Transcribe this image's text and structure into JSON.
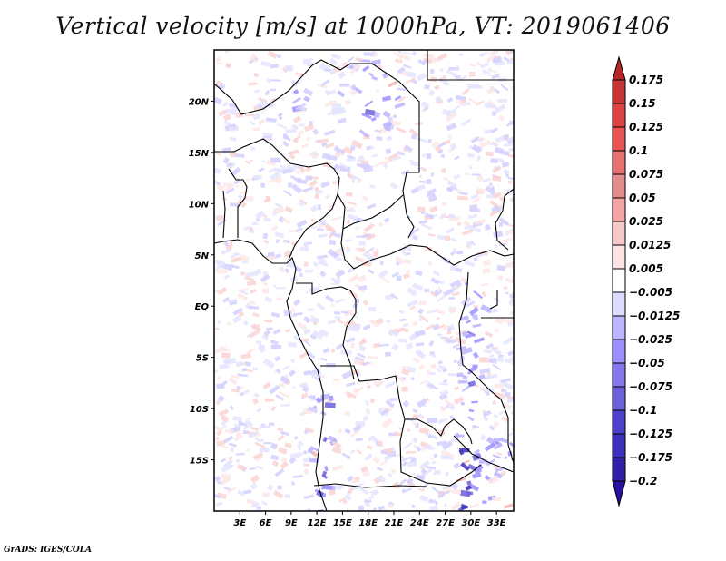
{
  "title": "Vertical velocity [m/s] at 1000hPa, VT: 2019061406",
  "credit": "GrADS: IGES/COLA",
  "map": {
    "variable": "Vertical velocity",
    "units": "m/s",
    "level": "1000hPa",
    "valid_time": "2019061406",
    "lon_range": [
      0,
      35
    ],
    "lat_range": [
      -20,
      25
    ],
    "x_ticks": [
      {
        "value": 3,
        "label": "3E"
      },
      {
        "value": 6,
        "label": "6E"
      },
      {
        "value": 9,
        "label": "9E"
      },
      {
        "value": 12,
        "label": "12E"
      },
      {
        "value": 15,
        "label": "15E"
      },
      {
        "value": 18,
        "label": "18E"
      },
      {
        "value": 21,
        "label": "21E"
      },
      {
        "value": 24,
        "label": "24E"
      },
      {
        "value": 27,
        "label": "27E"
      },
      {
        "value": 30,
        "label": "30E"
      },
      {
        "value": 33,
        "label": "33E"
      }
    ],
    "y_ticks": [
      {
        "value": 20,
        "label": "20N"
      },
      {
        "value": 15,
        "label": "15N"
      },
      {
        "value": 10,
        "label": "10N"
      },
      {
        "value": 5,
        "label": "5N"
      },
      {
        "value": 0,
        "label": "EQ"
      },
      {
        "value": -5,
        "label": "5S"
      },
      {
        "value": -10,
        "label": "10S"
      },
      {
        "value": -15,
        "label": "15S"
      }
    ]
  },
  "colorbar": {
    "labels": [
      "0.175",
      "0.15",
      "0.125",
      "0.1",
      "0.075",
      "0.05",
      "0.025",
      "0.0125",
      "0.005",
      "-0.005",
      "-0.0125",
      "-0.025",
      "-0.05",
      "-0.075",
      "-0.1",
      "-0.125",
      "-0.175",
      "-0.2"
    ],
    "colors": [
      "#b42828",
      "#c83434",
      "#dc4444",
      "#e85454",
      "#e87070",
      "#e48c8c",
      "#f4a4a4",
      "#f8c8c8",
      "#fce4e4",
      "#ffffff",
      "#dcdcff",
      "#bcb4ff",
      "#9c90ff",
      "#8478ec",
      "#6c60dc",
      "#4c40cc",
      "#3c30bc",
      "#3020a8",
      "#2810a0"
    ],
    "top_arrow_color": "#b42828",
    "bottom_arrow_color": "#2810a0"
  }
}
